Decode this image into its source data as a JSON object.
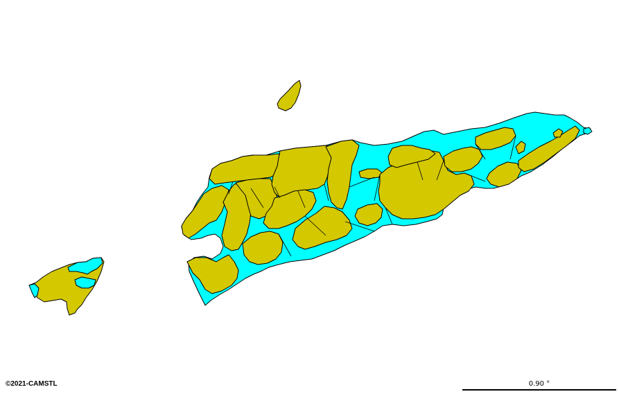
{
  "map": {
    "colors": {
      "land_primary": "#d4c800",
      "land_secondary": "#00ffff",
      "outline": "#000000",
      "background": "#ffffff"
    }
  },
  "copyright": "©2021-CAMSTL",
  "scale": {
    "label": "0.90 °"
  }
}
